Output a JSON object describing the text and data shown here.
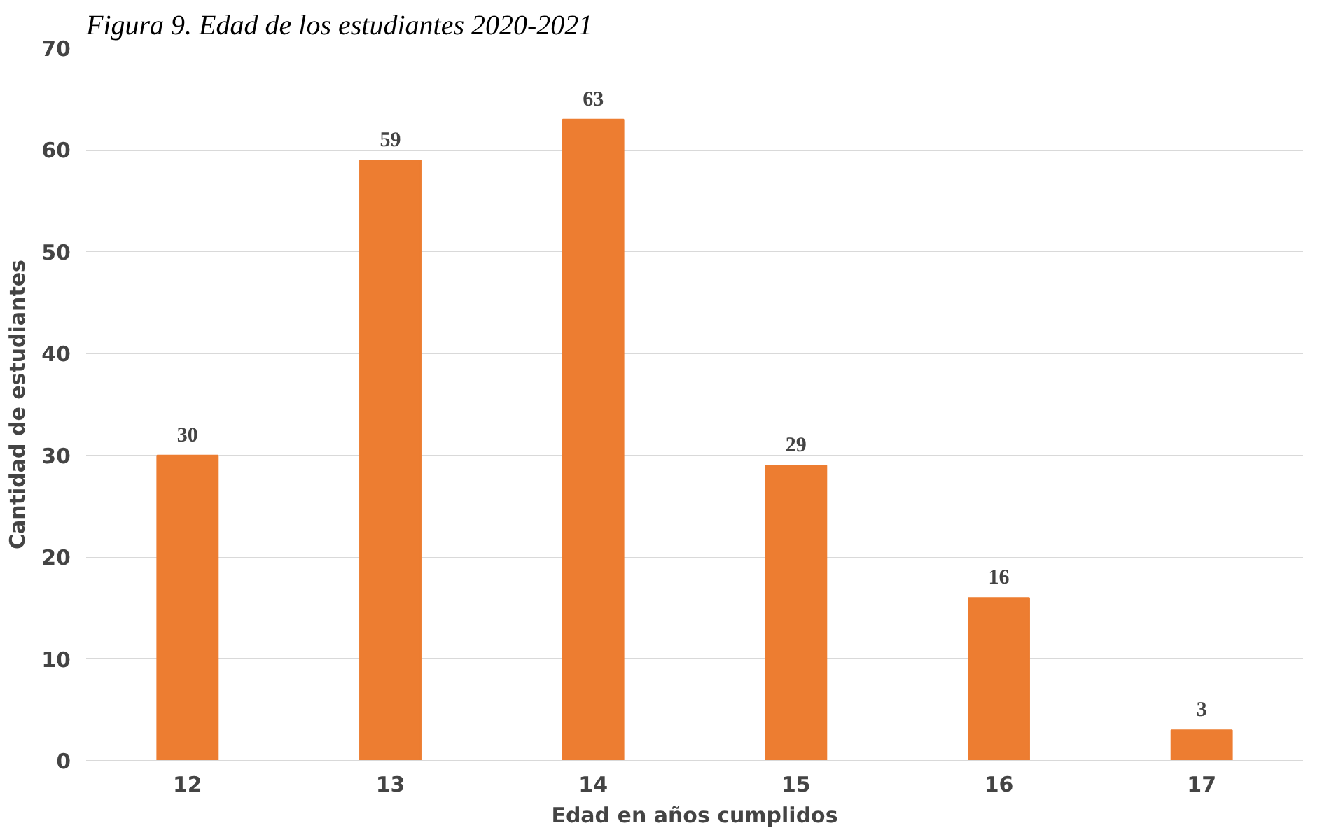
{
  "chart_data": {
    "type": "bar",
    "title": "Figura 9. Edad de los estudiantes 2020-2021",
    "xlabel": "Edad en años cumplidos",
    "ylabel": "Cantidad de estudiantes",
    "categories": [
      "12",
      "13",
      "14",
      "15",
      "16",
      "17"
    ],
    "values": [
      30,
      59,
      63,
      29,
      16,
      3
    ],
    "color": "#ed7d31",
    "ylim": [
      0,
      70
    ],
    "yticks": [
      0,
      10,
      20,
      30,
      40,
      50,
      60,
      70
    ],
    "grid": "y",
    "data_labels": true
  }
}
